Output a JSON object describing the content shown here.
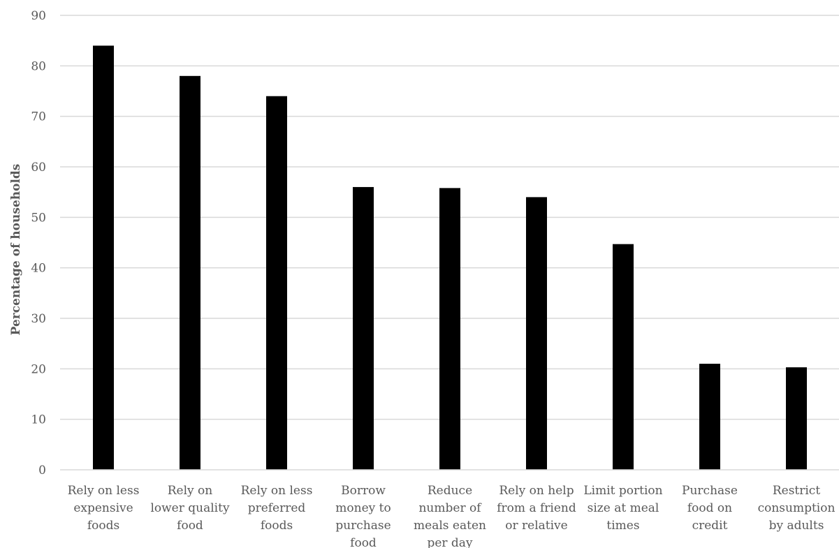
{
  "chart_data": {
    "type": "bar",
    "title": "",
    "xlabel": "",
    "ylabel": "Percentage of households",
    "ylim": [
      0,
      90
    ],
    "yticks": [
      0,
      10,
      20,
      30,
      40,
      50,
      60,
      70,
      80,
      90
    ],
    "grid": true,
    "legend": "none",
    "bar_color": "#000000",
    "categories": [
      [
        "Rely on less",
        "expensive",
        "foods"
      ],
      [
        "Rely on",
        "lower quality",
        "food"
      ],
      [
        "Rely on less",
        "preferred",
        "foods"
      ],
      [
        "Borrow",
        "money to",
        "purchase",
        "food"
      ],
      [
        "Reduce",
        "number of",
        "meals eaten",
        "per day"
      ],
      [
        "Rely on help",
        "from a friend",
        "or relative"
      ],
      [
        "Limit portion",
        "size at meal",
        "times"
      ],
      [
        "Purchase",
        "food on",
        "credit"
      ],
      [
        "Restrict",
        "consumption",
        "by adults"
      ]
    ],
    "values": [
      84,
      78,
      74,
      56,
      55.8,
      54,
      44.7,
      21,
      20.3
    ]
  }
}
